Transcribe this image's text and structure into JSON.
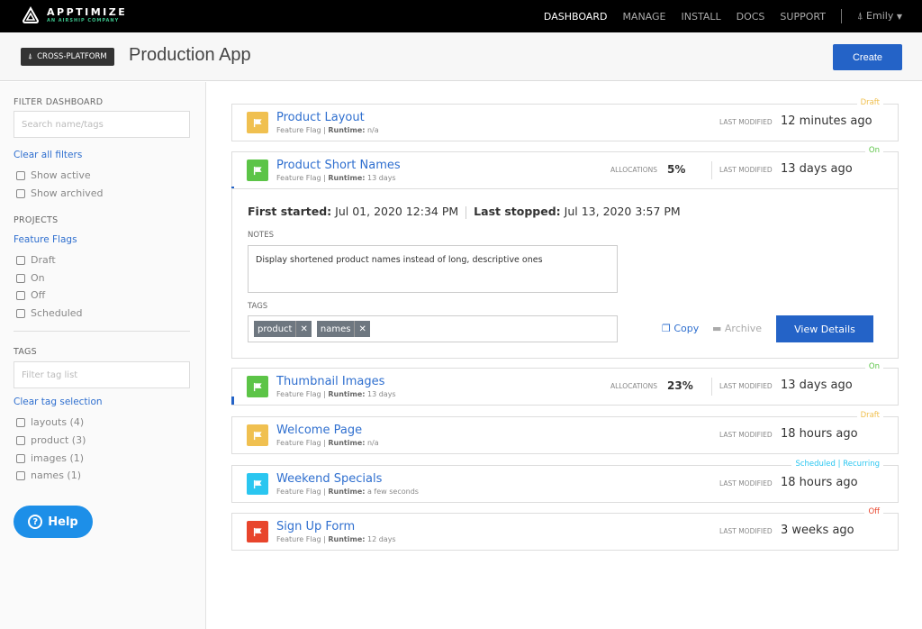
{
  "nav": {
    "brand": "APPTIMIZE",
    "tagline": "AN AIRSHIP COMPANY",
    "links": [
      "DASHBOARD",
      "MANAGE",
      "INSTALL",
      "DOCS",
      "SUPPORT"
    ],
    "active": "DASHBOARD",
    "user": "Emily"
  },
  "header": {
    "platform_badge": "CROSS-PLATFORM",
    "title": "Production App",
    "create_label": "Create"
  },
  "sidebar": {
    "filter_heading": "FILTER DASHBOARD",
    "search_placeholder": "Search name/tags",
    "clear_filters": "Clear all filters",
    "show": [
      "Show active",
      "Show archived"
    ],
    "projects_heading": "PROJECTS",
    "project_link": "Feature Flags",
    "states": [
      "Draft",
      "On",
      "Off",
      "Scheduled"
    ],
    "tags_heading": "TAGS",
    "tag_placeholder": "Filter tag list",
    "clear_tags": "Clear tag selection",
    "tags": [
      "layouts (4)",
      "product (3)",
      "images (1)",
      "names (1)"
    ],
    "help_label": "Help"
  },
  "labels": {
    "last_modified": "LAST MODIFIED",
    "allocations": "ALLOCATIONS",
    "type": "Feature Flag",
    "runtime": "Runtime:"
  },
  "colors": {
    "Draft": "#f0c050",
    "On": "#5cc447",
    "Off": "#e8452c",
    "Scheduled": "#2ac6f0",
    "accent": "#2463c7"
  },
  "flags": [
    {
      "name": "Product Layout",
      "status": "Draft",
      "runtime": "n/a",
      "last_modified": "12 minutes ago"
    },
    {
      "name": "Product Short Names",
      "status": "On",
      "runtime": "13 days",
      "allocations": "5%",
      "alloc_fraction": 0.05,
      "last_modified": "13 days ago"
    },
    {
      "name": "Thumbnail Images",
      "status": "On",
      "runtime": "13 days",
      "allocations": "23%",
      "alloc_fraction": 0.23,
      "last_modified": "13 days ago"
    },
    {
      "name": "Welcome Page",
      "status": "Draft",
      "runtime": "n/a",
      "last_modified": "18 hours ago"
    },
    {
      "name": "Weekend Specials",
      "status": "Scheduled | Recurring",
      "runtime": "a few seconds",
      "last_modified": "18 hours ago"
    },
    {
      "name": "Sign Up Form",
      "status": "Off",
      "runtime": "12 days",
      "last_modified": "3 weeks ago"
    }
  ],
  "details": {
    "first_started_label": "First started:",
    "first_started": "Jul 01, 2020 12:34 PM",
    "last_stopped_label": "Last stopped:",
    "last_stopped": "Jul 13, 2020 3:57 PM",
    "notes_label": "NOTES",
    "notes": "Display shortened product names instead of long, descriptive ones",
    "tags_label": "TAGS",
    "tags": [
      "product",
      "names"
    ],
    "copy": "Copy",
    "archive": "Archive",
    "view_details": "View Details"
  }
}
